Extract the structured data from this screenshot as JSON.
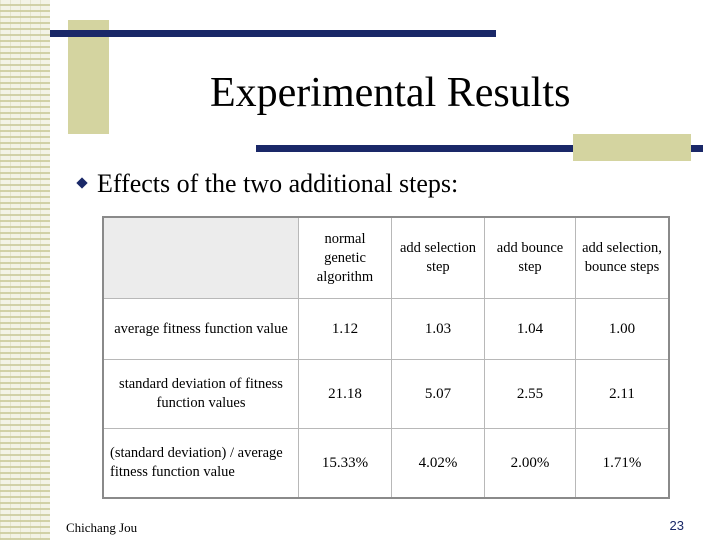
{
  "slide": {
    "title": "Experimental Results",
    "bullet": "Effects of the two additional steps:",
    "author": "Chichang Jou",
    "page_number": "23"
  },
  "table": {
    "columns": [
      "normal genetic algorithm",
      "add selection step",
      "add bounce step",
      "add selection, bounce steps"
    ],
    "rows": [
      {
        "label": "average fitness function value",
        "values": [
          "1.12",
          "1.03",
          "1.04",
          "1.00"
        ]
      },
      {
        "label": "standard deviation of fitness function values",
        "values": [
          "21.18",
          "5.07",
          "2.55",
          "2.11"
        ]
      },
      {
        "label": "(standard deviation) / average fitness function value",
        "values": [
          "15.33%",
          "4.02%",
          "2.00%",
          "1.71%"
        ]
      }
    ]
  },
  "colors": {
    "accent_bar": "#1a2868",
    "accent_block": "#d4d4a0"
  }
}
